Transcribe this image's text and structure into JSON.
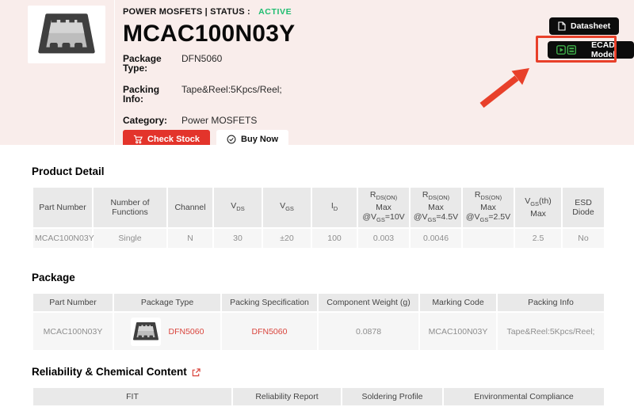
{
  "hero": {
    "category_label": "POWER MOSFETS | STATUS :",
    "status": "ACTIVE",
    "title": "MCAC100N03Y",
    "specs": {
      "package_type": {
        "label": "Package Type:",
        "value": "DFN5060"
      },
      "packing_info": {
        "label": "Packing Info:",
        "value": "Tape&Reel:5Kpcs/Reel;"
      },
      "category": {
        "label": "Category:",
        "value": "Power MOSFETS"
      }
    },
    "check_stock_label": "Check Stock",
    "buy_now_label": "Buy Now",
    "datasheet_label": "Datasheet",
    "ecad_label": "ECAD Model"
  },
  "product_detail": {
    "title": "Product Detail",
    "headers": [
      [
        "Part Number"
      ],
      [
        "Number of Functions"
      ],
      [
        "Channel"
      ],
      [
        "V_{DS}"
      ],
      [
        "V_{GS}"
      ],
      [
        "I_{D}"
      ],
      [
        "R_{DS(ON)}",
        "Max",
        "@V_{GS}=10V"
      ],
      [
        "R_{DS(ON)}",
        "Max",
        "@V_{GS}=4.5V"
      ],
      [
        "R_{DS(ON)}",
        "Max",
        "@V_{GS}=2.5V"
      ],
      [
        "V_{GS}(th)",
        "Max"
      ],
      [
        "ESD",
        "Diode"
      ]
    ],
    "row": [
      "MCAC100N03Y",
      "Single",
      "N",
      "30",
      "±20",
      "100",
      "0.003",
      "0.0046",
      "",
      "2.5",
      "No"
    ]
  },
  "package": {
    "title": "Package",
    "headers": [
      "Part Number",
      "Package Type",
      "Packing Specification",
      "Component Weight (g)",
      "Marking Code",
      "Packing Info"
    ],
    "row": {
      "part_number": "MCAC100N03Y",
      "package_type_link": "DFN5060",
      "packing_spec_link": "DFN5060",
      "weight": "0.0878",
      "marking_code": "MCAC100N03Y",
      "packing_info": "Tape&Reel:5Kpcs/Reel;"
    }
  },
  "reliability": {
    "title": "Reliability & Chemical Content",
    "headers": [
      "FIT",
      "Reliability Report",
      "Soldering Profile",
      "Environmental Compliance"
    ]
  },
  "icons": {
    "check_stock": "cart-icon",
    "buy_now": "check-circle-icon",
    "datasheet": "document-icon",
    "ecad": "play-chip-icon",
    "reliability_title": "external-link-icon",
    "product_image": "chip-package-image"
  },
  "colors": {
    "hero_bg": "#f9edeb",
    "accent_red": "#e3342b",
    "annotation_red": "#e8402a",
    "status_green": "#1ebd70",
    "link_red": "#d9453d",
    "button_black": "#0c0c0c",
    "table_header_bg": "#e9e9e9",
    "table_row_bg": "#f6f6f6"
  }
}
